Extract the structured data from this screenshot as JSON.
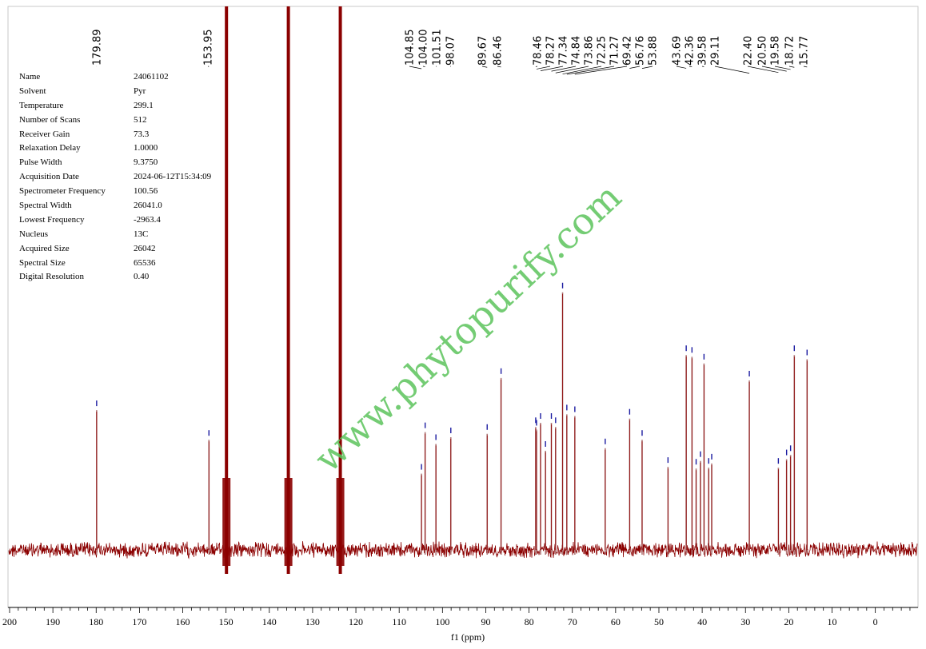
{
  "chart_data": {
    "type": "line",
    "title": "",
    "xlabel": "f1 (ppm)",
    "ylabel": "",
    "xlim": [
      200,
      -10
    ],
    "x_ticks": [
      "200",
      "190",
      "180",
      "170",
      "160",
      "150",
      "140",
      "130",
      "120",
      "110",
      "100",
      "90",
      "80",
      "70",
      "60",
      "50",
      "40",
      "30",
      "20",
      "10",
      "0"
    ],
    "peak_labels": [
      "179.89",
      "153.95",
      "104.85",
      "104.00",
      "101.51",
      "98.07",
      "89.67",
      "86.46",
      "78.46",
      "78.27",
      "77.34",
      "74.84",
      "73.86",
      "72.25",
      "71.27",
      "69.42",
      "56.76",
      "53.88",
      "43.69",
      "42.36",
      "39.58",
      "29.11",
      "22.40",
      "20.50",
      "19.58",
      "18.72",
      "15.77"
    ],
    "solvent_peaks": [
      {
        "shift": 149.9,
        "intensity": 1.0
      },
      {
        "shift": 135.6,
        "intensity": 1.0
      },
      {
        "shift": 123.6,
        "intensity": 1.0
      }
    ],
    "peaks": [
      {
        "shift": 179.89,
        "intensity": 0.165
      },
      {
        "shift": 153.95,
        "intensity": 0.13
      },
      {
        "shift": 104.85,
        "intensity": 0.09
      },
      {
        "shift": 104.0,
        "intensity": 0.139
      },
      {
        "shift": 101.51,
        "intensity": 0.125
      },
      {
        "shift": 98.07,
        "intensity": 0.133
      },
      {
        "shift": 89.67,
        "intensity": 0.137
      },
      {
        "shift": 86.46,
        "intensity": 0.203
      },
      {
        "shift": 78.46,
        "intensity": 0.145
      },
      {
        "shift": 78.27,
        "intensity": 0.142
      },
      {
        "shift": 77.34,
        "intensity": 0.15
      },
      {
        "shift": 76.2,
        "intensity": 0.117
      },
      {
        "shift": 74.84,
        "intensity": 0.15
      },
      {
        "shift": 73.86,
        "intensity": 0.145
      },
      {
        "shift": 72.25,
        "intensity": 0.304
      },
      {
        "shift": 71.27,
        "intensity": 0.16
      },
      {
        "shift": 69.42,
        "intensity": 0.158
      },
      {
        "shift": 62.4,
        "intensity": 0.12
      },
      {
        "shift": 56.76,
        "intensity": 0.155
      },
      {
        "shift": 53.88,
        "intensity": 0.13
      },
      {
        "shift": 47.9,
        "intensity": 0.098
      },
      {
        "shift": 43.69,
        "intensity": 0.23
      },
      {
        "shift": 42.36,
        "intensity": 0.228
      },
      {
        "shift": 41.4,
        "intensity": 0.096
      },
      {
        "shift": 40.4,
        "intensity": 0.105
      },
      {
        "shift": 39.58,
        "intensity": 0.22
      },
      {
        "shift": 38.5,
        "intensity": 0.097
      },
      {
        "shift": 37.8,
        "intensity": 0.102
      },
      {
        "shift": 29.11,
        "intensity": 0.2
      },
      {
        "shift": 22.4,
        "intensity": 0.097
      },
      {
        "shift": 20.5,
        "intensity": 0.107
      },
      {
        "shift": 19.58,
        "intensity": 0.112
      },
      {
        "shift": 18.72,
        "intensity": 0.23
      },
      {
        "shift": 15.77,
        "intensity": 0.225
      }
    ],
    "colors": {
      "spectrum": "#8b0000",
      "peak_stem": "#b07878",
      "peak_marker": "#1a1aa0",
      "axis": "#000000",
      "frame": "#c8c8c8"
    }
  },
  "parameters": [
    {
      "name": "Name",
      "value": "24061102"
    },
    {
      "name": "Solvent",
      "value": "Pyr"
    },
    {
      "name": "Temperature",
      "value": "299.1"
    },
    {
      "name": "Number of Scans",
      "value": "512"
    },
    {
      "name": "Receiver Gain",
      "value": "73.3"
    },
    {
      "name": "Relaxation Delay",
      "value": "1.0000"
    },
    {
      "name": "Pulse Width",
      "value": "9.3750"
    },
    {
      "name": "Acquisition Date",
      "value": "2024-06-12T15:34:09"
    },
    {
      "name": "Spectrometer Frequency",
      "value": "100.56"
    },
    {
      "name": "Spectral Width",
      "value": "26041.0"
    },
    {
      "name": "Lowest Frequency",
      "value": "-2963.4"
    },
    {
      "name": "Nucleus",
      "value": "13C"
    },
    {
      "name": "Acquired Size",
      "value": "26042"
    },
    {
      "name": "Spectral Size",
      "value": "65536"
    },
    {
      "name": "Digital Resolution",
      "value": "0.40"
    }
  ],
  "watermark": "www.phytopurify.com"
}
